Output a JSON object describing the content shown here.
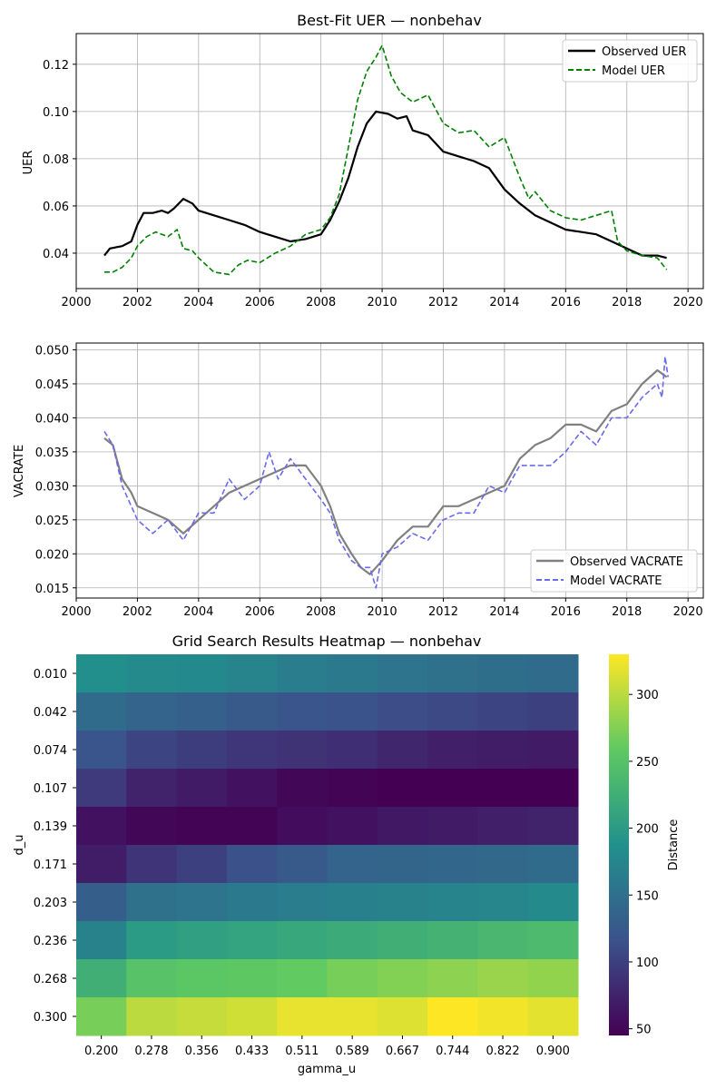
{
  "chart_data": [
    {
      "type": "line",
      "title": "Best-Fit UER — nonbehav",
      "xlabel": "",
      "ylabel": "UER",
      "xlim": [
        2000,
        2020.5
      ],
      "ylim": [
        0.025,
        0.133
      ],
      "x_ticks": [
        "2000",
        "2002",
        "2004",
        "2006",
        "2008",
        "2010",
        "2012",
        "2014",
        "2016",
        "2018",
        "2020"
      ],
      "y_ticks": [
        "0.04",
        "0.06",
        "0.08",
        "0.10",
        "0.12"
      ],
      "grid": true,
      "legend_position": "upper-right",
      "series": [
        {
          "name": "Observed UER",
          "color": "#000000",
          "style": "solid",
          "points": [
            [
              2000.92,
              0.039
            ],
            [
              2001.1,
              0.042
            ],
            [
              2001.5,
              0.043
            ],
            [
              2001.8,
              0.045
            ],
            [
              2002.0,
              0.052
            ],
            [
              2002.2,
              0.057
            ],
            [
              2002.5,
              0.057
            ],
            [
              2002.8,
              0.058
            ],
            [
              2003.0,
              0.057
            ],
            [
              2003.2,
              0.059
            ],
            [
              2003.5,
              0.063
            ],
            [
              2003.8,
              0.061
            ],
            [
              2004.0,
              0.058
            ],
            [
              2004.5,
              0.056
            ],
            [
              2005.0,
              0.054
            ],
            [
              2005.5,
              0.052
            ],
            [
              2006.0,
              0.049
            ],
            [
              2006.5,
              0.047
            ],
            [
              2007.0,
              0.045
            ],
            [
              2007.5,
              0.046
            ],
            [
              2008.0,
              0.048
            ],
            [
              2008.3,
              0.054
            ],
            [
              2008.6,
              0.062
            ],
            [
              2008.9,
              0.072
            ],
            [
              2009.2,
              0.085
            ],
            [
              2009.5,
              0.095
            ],
            [
              2009.8,
              0.1
            ],
            [
              2010.2,
              0.099
            ],
            [
              2010.5,
              0.097
            ],
            [
              2010.8,
              0.098
            ],
            [
              2011.0,
              0.092
            ],
            [
              2011.5,
              0.09
            ],
            [
              2012.0,
              0.083
            ],
            [
              2012.5,
              0.081
            ],
            [
              2013.0,
              0.079
            ],
            [
              2013.5,
              0.076
            ],
            [
              2014.0,
              0.067
            ],
            [
              2014.5,
              0.061
            ],
            [
              2015.0,
              0.056
            ],
            [
              2015.5,
              0.053
            ],
            [
              2016.0,
              0.05
            ],
            [
              2016.5,
              0.049
            ],
            [
              2017.0,
              0.048
            ],
            [
              2017.5,
              0.045
            ],
            [
              2018.0,
              0.042
            ],
            [
              2018.5,
              0.039
            ],
            [
              2019.0,
              0.039
            ],
            [
              2019.3,
              0.038
            ]
          ]
        },
        {
          "name": "Model UER",
          "color": "#008000",
          "style": "dashed",
          "points": [
            [
              2000.92,
              0.032
            ],
            [
              2001.2,
              0.032
            ],
            [
              2001.5,
              0.034
            ],
            [
              2001.8,
              0.038
            ],
            [
              2002.0,
              0.043
            ],
            [
              2002.3,
              0.047
            ],
            [
              2002.6,
              0.049
            ],
            [
              2003.0,
              0.047
            ],
            [
              2003.3,
              0.05
            ],
            [
              2003.5,
              0.042
            ],
            [
              2003.8,
              0.041
            ],
            [
              2004.0,
              0.038
            ],
            [
              2004.5,
              0.032
            ],
            [
              2005.0,
              0.031
            ],
            [
              2005.3,
              0.035
            ],
            [
              2005.6,
              0.037
            ],
            [
              2006.0,
              0.036
            ],
            [
              2006.5,
              0.04
            ],
            [
              2007.0,
              0.043
            ],
            [
              2007.5,
              0.048
            ],
            [
              2008.0,
              0.05
            ],
            [
              2008.3,
              0.055
            ],
            [
              2008.6,
              0.065
            ],
            [
              2008.9,
              0.085
            ],
            [
              2009.2,
              0.105
            ],
            [
              2009.5,
              0.117
            ],
            [
              2009.8,
              0.123
            ],
            [
              2010.0,
              0.128
            ],
            [
              2010.3,
              0.115
            ],
            [
              2010.6,
              0.108
            ],
            [
              2011.0,
              0.104
            ],
            [
              2011.5,
              0.107
            ],
            [
              2012.0,
              0.095
            ],
            [
              2012.5,
              0.091
            ],
            [
              2013.0,
              0.092
            ],
            [
              2013.5,
              0.085
            ],
            [
              2014.0,
              0.089
            ],
            [
              2014.5,
              0.072
            ],
            [
              2014.8,
              0.063
            ],
            [
              2015.0,
              0.066
            ],
            [
              2015.5,
              0.058
            ],
            [
              2016.0,
              0.055
            ],
            [
              2016.5,
              0.054
            ],
            [
              2017.0,
              0.056
            ],
            [
              2017.5,
              0.058
            ],
            [
              2017.7,
              0.045
            ],
            [
              2018.0,
              0.041
            ],
            [
              2018.5,
              0.039
            ],
            [
              2019.0,
              0.038
            ],
            [
              2019.3,
              0.033
            ]
          ]
        }
      ]
    },
    {
      "type": "line",
      "title": "",
      "xlabel": "",
      "ylabel": "VACRATE",
      "xlim": [
        2000,
        2020.5
      ],
      "ylim": [
        0.0135,
        0.051
      ],
      "x_ticks": [
        "2000",
        "2002",
        "2004",
        "2006",
        "2008",
        "2010",
        "2012",
        "2014",
        "2016",
        "2018",
        "2020"
      ],
      "y_ticks": [
        "0.015",
        "0.020",
        "0.025",
        "0.030",
        "0.035",
        "0.040",
        "0.045",
        "0.050"
      ],
      "grid": true,
      "legend_position": "lower-right",
      "series": [
        {
          "name": "Observed VACRATE",
          "color": "#808080",
          "style": "solid",
          "points": [
            [
              2000.92,
              0.037
            ],
            [
              2001.2,
              0.036
            ],
            [
              2001.5,
              0.031
            ],
            [
              2001.8,
              0.029
            ],
            [
              2002.0,
              0.027
            ],
            [
              2002.5,
              0.026
            ],
            [
              2003.0,
              0.025
            ],
            [
              2003.5,
              0.023
            ],
            [
              2004.0,
              0.025
            ],
            [
              2004.5,
              0.027
            ],
            [
              2005.0,
              0.029
            ],
            [
              2005.5,
              0.03
            ],
            [
              2006.0,
              0.031
            ],
            [
              2006.5,
              0.032
            ],
            [
              2007.0,
              0.033
            ],
            [
              2007.5,
              0.033
            ],
            [
              2008.0,
              0.03
            ],
            [
              2008.3,
              0.027
            ],
            [
              2008.6,
              0.023
            ],
            [
              2009.0,
              0.02
            ],
            [
              2009.3,
              0.018
            ],
            [
              2009.6,
              0.017
            ],
            [
              2010.0,
              0.019
            ],
            [
              2010.5,
              0.022
            ],
            [
              2011.0,
              0.024
            ],
            [
              2011.5,
              0.024
            ],
            [
              2012.0,
              0.027
            ],
            [
              2012.5,
              0.027
            ],
            [
              2013.0,
              0.028
            ],
            [
              2013.5,
              0.029
            ],
            [
              2014.0,
              0.03
            ],
            [
              2014.5,
              0.034
            ],
            [
              2015.0,
              0.036
            ],
            [
              2015.5,
              0.037
            ],
            [
              2016.0,
              0.039
            ],
            [
              2016.5,
              0.039
            ],
            [
              2017.0,
              0.038
            ],
            [
              2017.5,
              0.041
            ],
            [
              2018.0,
              0.042
            ],
            [
              2018.5,
              0.045
            ],
            [
              2019.0,
              0.047
            ],
            [
              2019.3,
              0.046
            ]
          ]
        },
        {
          "name": "Model VACRATE",
          "color": "#6a6aea",
          "style": "dashed",
          "points": [
            [
              2000.92,
              0.038
            ],
            [
              2001.2,
              0.036
            ],
            [
              2001.5,
              0.03
            ],
            [
              2001.8,
              0.027
            ],
            [
              2002.0,
              0.025
            ],
            [
              2002.5,
              0.023
            ],
            [
              2003.0,
              0.025
            ],
            [
              2003.5,
              0.022
            ],
            [
              2004.0,
              0.026
            ],
            [
              2004.5,
              0.026
            ],
            [
              2005.0,
              0.031
            ],
            [
              2005.5,
              0.028
            ],
            [
              2006.0,
              0.03
            ],
            [
              2006.3,
              0.035
            ],
            [
              2006.6,
              0.031
            ],
            [
              2007.0,
              0.034
            ],
            [
              2007.5,
              0.031
            ],
            [
              2008.0,
              0.028
            ],
            [
              2008.3,
              0.026
            ],
            [
              2008.6,
              0.022
            ],
            [
              2009.0,
              0.019
            ],
            [
              2009.3,
              0.018
            ],
            [
              2009.6,
              0.018
            ],
            [
              2009.8,
              0.015
            ],
            [
              2010.0,
              0.02
            ],
            [
              2010.5,
              0.021
            ],
            [
              2011.0,
              0.023
            ],
            [
              2011.5,
              0.022
            ],
            [
              2012.0,
              0.025
            ],
            [
              2012.5,
              0.026
            ],
            [
              2013.0,
              0.026
            ],
            [
              2013.5,
              0.03
            ],
            [
              2014.0,
              0.029
            ],
            [
              2014.5,
              0.033
            ],
            [
              2015.0,
              0.033
            ],
            [
              2015.5,
              0.033
            ],
            [
              2016.0,
              0.035
            ],
            [
              2016.5,
              0.038
            ],
            [
              2017.0,
              0.036
            ],
            [
              2017.5,
              0.04
            ],
            [
              2018.0,
              0.04
            ],
            [
              2018.5,
              0.043
            ],
            [
              2019.0,
              0.045
            ],
            [
              2019.15,
              0.043
            ],
            [
              2019.25,
              0.049
            ],
            [
              2019.35,
              0.046
            ]
          ]
        }
      ]
    },
    {
      "type": "heatmap",
      "title": "Grid Search Results Heatmap — nonbehav",
      "xlabel": "gamma_u",
      "ylabel": "d_u",
      "x_categories": [
        "0.200",
        "0.278",
        "0.356",
        "0.433",
        "0.511",
        "0.589",
        "0.667",
        "0.744",
        "0.822",
        "0.900"
      ],
      "y_categories": [
        "0.010",
        "0.042",
        "0.074",
        "0.107",
        "0.139",
        "0.171",
        "0.203",
        "0.236",
        "0.268",
        "0.300"
      ],
      "values": [
        [
          185,
          180,
          178,
          172,
          165,
          160,
          155,
          150,
          148,
          145
        ],
        [
          145,
          135,
          132,
          125,
          120,
          118,
          112,
          108,
          105,
          100
        ],
        [
          120,
          105,
          98,
          92,
          88,
          85,
          78,
          72,
          70,
          68
        ],
        [
          95,
          75,
          68,
          60,
          50,
          48,
          45,
          45,
          44,
          44
        ],
        [
          60,
          50,
          48,
          48,
          55,
          60,
          65,
          68,
          72,
          75
        ],
        [
          70,
          90,
          100,
          115,
          125,
          135,
          138,
          140,
          142,
          145
        ],
        [
          130,
          150,
          155,
          160,
          165,
          168,
          170,
          172,
          175,
          180
        ],
        [
          170,
          200,
          205,
          210,
          215,
          220,
          225,
          230,
          235,
          240
        ],
        [
          225,
          250,
          255,
          258,
          260,
          270,
          275,
          280,
          285,
          282
        ],
        [
          270,
          300,
          305,
          310,
          320,
          320,
          315,
          330,
          325,
          318
        ]
      ],
      "colorbar_label": "Distance",
      "colorbar_range": [
        45,
        330
      ],
      "colorbar_ticks": [
        "50",
        "100",
        "150",
        "200",
        "250",
        "300"
      ],
      "colormap": "viridis"
    }
  ]
}
